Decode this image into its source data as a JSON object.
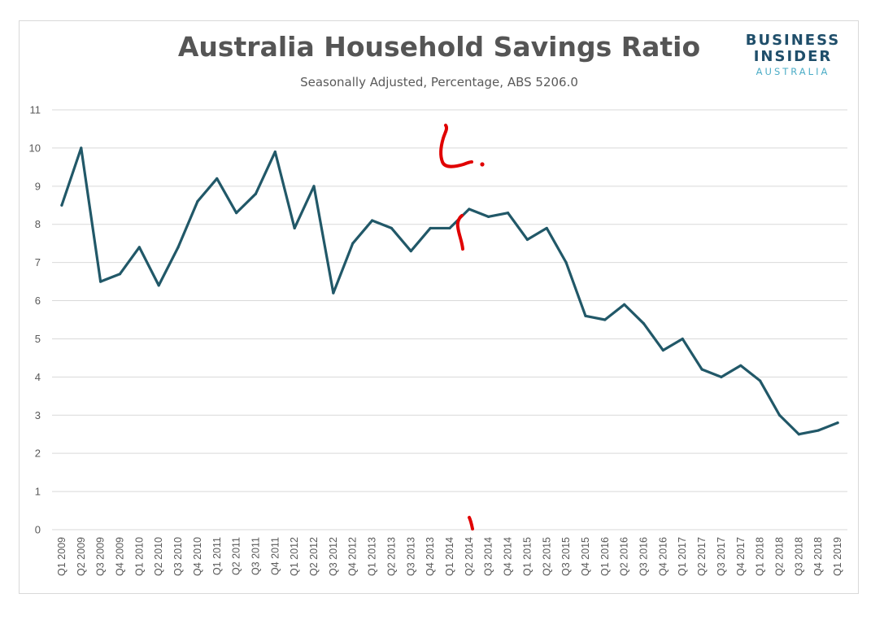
{
  "header": {
    "title": "Australia Household Savings Ratio",
    "subtitle": "Seasonally Adjusted, Percentage, ABS 5206.0"
  },
  "logo": {
    "line1": "BUSINESS",
    "line2": "INSIDER",
    "line3": "AUSTRALIA"
  },
  "colors": {
    "series_line": "#215868",
    "gridline": "#d9d9d9",
    "annotation": "#e00000"
  },
  "chart_data": {
    "type": "line",
    "title": "Australia Household Savings Ratio",
    "subtitle": "Seasonally Adjusted, Percentage, ABS 5206.0",
    "xlabel": "",
    "ylabel": "",
    "ylim": [
      0,
      11
    ],
    "yticks": [
      0,
      1,
      2,
      3,
      4,
      5,
      6,
      7,
      8,
      9,
      10,
      11
    ],
    "grid": true,
    "legend": "none",
    "categories": [
      "Q1 2009",
      "Q2 2009",
      "Q3 2009",
      "Q4 2009",
      "Q1 2010",
      "Q2 2010",
      "Q3 2010",
      "Q4 2010",
      "Q1 2011",
      "Q2 2011",
      "Q3 2011",
      "Q4 2011",
      "Q1 2012",
      "Q2 2012",
      "Q3 2012",
      "Q4 2012",
      "Q1 2013",
      "Q2 2013",
      "Q3 2013",
      "Q4 2013",
      "Q1 2014",
      "Q2 2014",
      "Q3 2014",
      "Q4 2014",
      "Q1 2015",
      "Q2 2015",
      "Q3 2015",
      "Q4 2015",
      "Q1 2016",
      "Q2 2016",
      "Q3 2016",
      "Q4 2016",
      "Q1 2017",
      "Q2 2017",
      "Q3 2017",
      "Q4 2017",
      "Q1 2018",
      "Q2 2018",
      "Q3 2018",
      "Q4 2018",
      "Q1 2019"
    ],
    "series": [
      {
        "values": [
          8.5,
          10.0,
          6.5,
          6.7,
          7.4,
          6.4,
          7.4,
          8.6,
          9.2,
          8.3,
          8.8,
          9.9,
          7.9,
          9.0,
          6.2,
          7.5,
          8.1,
          7.9,
          7.3,
          7.9,
          7.9,
          8.4,
          8.2,
          8.3,
          7.6,
          7.9,
          7.0,
          5.6,
          5.5,
          5.9,
          5.4,
          4.7,
          5.0,
          4.2,
          4.0,
          4.3,
          3.9,
          3.0,
          2.5,
          2.6,
          2.8
        ]
      }
    ]
  }
}
